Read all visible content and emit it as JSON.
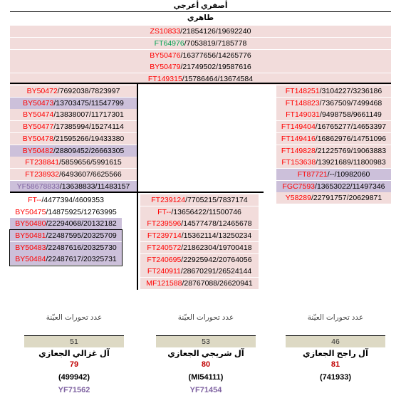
{
  "header": {
    "top_label": "أصفري أعرجي",
    "sub_label": "طاهري"
  },
  "trunk_rows": [
    {
      "a": "ZS10833",
      "b": "21854126",
      "c": "19692240",
      "color": "red",
      "bg": "pink"
    },
    {
      "a": "FT64976",
      "b": "7053819",
      "c": "7185778",
      "color": "green",
      "bg": "pink"
    },
    {
      "a": "BY50476",
      "b": "16377656",
      "c": "14265776",
      "color": "red",
      "bg": "pink"
    },
    {
      "a": "BY50479",
      "b": "21749502",
      "c": "19587616",
      "color": "red",
      "bg": "pink"
    },
    {
      "a": "FT149315",
      "b": "15786464",
      "c": "13674584",
      "color": "red",
      "bg": "pink"
    }
  ],
  "left_branch": [
    {
      "a": "BY50472",
      "b": "7692038",
      "c": "7823997",
      "color": "red",
      "bg": "pink"
    },
    {
      "a": "BY50473",
      "b": "13703475",
      "c": "11547799",
      "color": "red",
      "bg": "lav"
    },
    {
      "a": "BY50474",
      "b": "13838007",
      "c": "11717301",
      "color": "red",
      "bg": "pink"
    },
    {
      "a": "BY50477",
      "b": "17385994",
      "c": "15274114",
      "color": "red",
      "bg": "pink"
    },
    {
      "a": "BY50478",
      "b": "21595266",
      "c": "19433380",
      "color": "red",
      "bg": "pink"
    },
    {
      "a": "BY50482",
      "b": "28809452",
      "c": "26663305",
      "color": "red",
      "bg": "lav"
    },
    {
      "a": "FT238841",
      "b": "5859656",
      "c": "5991615",
      "color": "red",
      "bg": "pink"
    },
    {
      "a": "FT238932",
      "b": "6493607",
      "c": "6625566",
      "color": "red",
      "bg": "pink"
    },
    {
      "a": "YF58678833",
      "b": "13638833",
      "c": "11483157",
      "color": "purple",
      "bg": "lav"
    }
  ],
  "left_sub_a": [
    {
      "a": "FT--",
      "b": "4477394",
      "c": "4609353",
      "color": "red",
      "bg": "white"
    },
    {
      "a": "BY50475",
      "b": "14875925",
      "c": "12763995",
      "color": "red",
      "bg": "white"
    },
    {
      "a": "BY50480",
      "b": "22294068",
      "c": "20132182",
      "color": "red",
      "bg": "lav"
    }
  ],
  "left_sub_box": [
    {
      "a": "BY50481",
      "b": "22487595",
      "c": "20325709",
      "color": "red",
      "bg": "lav"
    },
    {
      "a": "BY50483",
      "b": "22487616",
      "c": "20325730",
      "color": "red",
      "bg": "lav"
    },
    {
      "a": "BY50484",
      "b": "22487617",
      "c": "20325731",
      "color": "red",
      "bg": "lav"
    }
  ],
  "mid_sub": [
    {
      "a": "FT239124",
      "b": "7705215",
      "c": "7837174",
      "color": "red",
      "bg": "pink"
    },
    {
      "a": "FT--",
      "b": "13656422",
      "c": "11500746",
      "color": "red",
      "bg": "pink"
    },
    {
      "a": "FT239596",
      "b": "14577478",
      "c": "12465678",
      "color": "red",
      "bg": "pink"
    },
    {
      "a": "FT239714",
      "b": "15362114",
      "c": "13250234",
      "color": "red",
      "bg": "pink"
    },
    {
      "a": "FT240572",
      "b": "21862304",
      "c": "19700418",
      "color": "red",
      "bg": "pink"
    },
    {
      "a": "FT240695",
      "b": "22925942",
      "c": "20764056",
      "color": "red",
      "bg": "pink"
    },
    {
      "a": "FT240911",
      "b": "28670291",
      "c": "26524144",
      "color": "red",
      "bg": "pink"
    },
    {
      "a": "MF121588",
      "b": "28767088",
      "c": "26620941",
      "color": "red",
      "bg": "pink"
    }
  ],
  "right_branch": [
    {
      "a": "FT148251",
      "b": "3104227",
      "c": "3236186",
      "color": "red",
      "bg": "pink"
    },
    {
      "a": "FT148823",
      "b": "7367509",
      "c": "7499468",
      "color": "red",
      "bg": "pink"
    },
    {
      "a": "FT149031",
      "b": "9498758",
      "c": "9661149",
      "color": "red",
      "bg": "pink"
    },
    {
      "a": "FT149404",
      "b": "16765277",
      "c": "14653397",
      "color": "red",
      "bg": "pink"
    },
    {
      "a": "FT149416",
      "b": "16862976",
      "c": "14751096",
      "color": "red",
      "bg": "pink"
    },
    {
      "a": "FT149828",
      "b": "21225769",
      "c": "19063883",
      "color": "red",
      "bg": "pink"
    },
    {
      "a": "FT153638",
      "b": "13921689",
      "c": "11800983",
      "color": "red",
      "bg": "pink"
    },
    {
      "a": "FT87721",
      "b": "--",
      "c": "10982060",
      "color": "red",
      "bg": "lav"
    },
    {
      "a": "FGC7593",
      "b": "13653022",
      "c": "11497346",
      "color": "red",
      "bg": "lav"
    },
    {
      "a": "Y58289",
      "b": "22791757",
      "c": "20629871",
      "color": "red",
      "bg": "pink"
    }
  ],
  "columns": [
    {
      "caption": "عدد تحورات العيّنة",
      "count": "51",
      "family": "آل غزالي الجعازي",
      "id": "79",
      "kit": "(499942)",
      "hap": "YF71562"
    },
    {
      "caption": "عدد تحورات العيّنة",
      "count": "53",
      "family": "آل شريجي الجعازي",
      "id": "80",
      "kit": "(MI54111)",
      "hap": "YF71454"
    },
    {
      "caption": "عدد تحورات العيّنة",
      "count": "46",
      "family": "آل راجح الجعازي",
      "id": "81",
      "kit": "(741933)",
      "hap": ""
    }
  ],
  "colors": {
    "pink": "#f2dcdb",
    "lavender": "#ccc0da",
    "count_bg": "#ddd9c4",
    "red": "#ff0000",
    "green": "#00a050",
    "purple": "#8064a2"
  }
}
